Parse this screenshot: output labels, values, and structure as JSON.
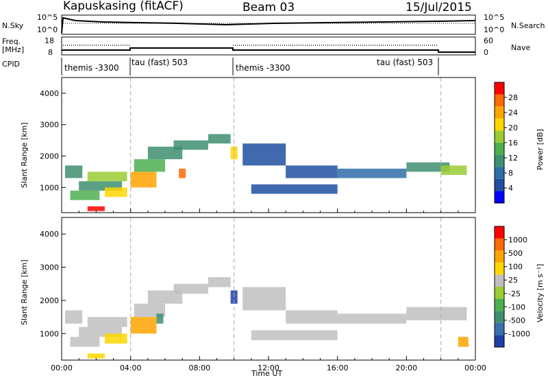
{
  "header": {
    "station": "Kapuskasing (fitACF)",
    "beam": "Beam 03",
    "date": "15/Jul/2015"
  },
  "left_labels": {
    "nsky": "N.Sky",
    "freq": "Freq.",
    "freq_unit": "[MHz]",
    "cpid": "CPID"
  },
  "right_labels": {
    "nsearch": "N.Search",
    "nave": "Nave"
  },
  "noise_axis": {
    "left_ticks": [
      "10^5",
      "10^0"
    ],
    "right_ticks": [
      "10^5",
      "10^0"
    ]
  },
  "freq_axis": {
    "left_ticks": [
      "18",
      "8"
    ],
    "right_ticks": [
      "60",
      "0"
    ]
  },
  "cpid_segments": [
    {
      "label": "themis -3300",
      "start_h": 0,
      "end_h": 4
    },
    {
      "label": "tau (fast) 503",
      "start_h": 4,
      "end_h": 10
    },
    {
      "label": "themis -3300",
      "start_h": 10,
      "end_h": 22
    },
    {
      "label": "tau (fast) 503",
      "start_h": 16,
      "end_h": 22
    }
  ],
  "colorbars": {
    "power": {
      "label": "Power [dB]",
      "ticks": [
        "28",
        "24",
        "20",
        "16",
        "12",
        "8",
        "4"
      ],
      "colors": [
        "#0000ff",
        "#1f4fa0",
        "#2e6fa8",
        "#3e8f6f",
        "#4caf50",
        "#9acd32",
        "#ffd700",
        "#ffa500",
        "#ff6a00",
        "#ff0000"
      ]
    },
    "velocity": {
      "label": "Velocity [m s⁻¹]",
      "ticks": [
        "1000",
        "500",
        "100",
        "25",
        "-25",
        "-100",
        "-500",
        "-1000"
      ],
      "colors": [
        "#1f3fa8",
        "#3a6fb0",
        "#3e8f6f",
        "#4caf50",
        "#9acd32",
        "#bfbfbf",
        "#ffd700",
        "#ffa500",
        "#ff6a00",
        "#ff0000"
      ]
    }
  },
  "chart_data": [
    {
      "type": "heatmap",
      "name": "Power",
      "ylabel": "Slant Range [km]",
      "y_ticks": [
        1000,
        2000,
        3000,
        4000
      ],
      "ylim": [
        200,
        4500
      ],
      "xlim": [
        0,
        24
      ],
      "blobs": [
        {
          "t0": 0.2,
          "t1": 1.2,
          "r0": 1300,
          "r1": 1700,
          "c": "#3e8f6f"
        },
        {
          "t0": 0.5,
          "t1": 2.2,
          "r0": 600,
          "r1": 900,
          "c": "#4caf50"
        },
        {
          "t0": 1.0,
          "t1": 3.5,
          "r0": 900,
          "r1": 1200,
          "c": "#3e8f6f"
        },
        {
          "t0": 1.5,
          "t1": 3.8,
          "r0": 1200,
          "r1": 1500,
          "c": "#9acd32"
        },
        {
          "t0": 2.5,
          "t1": 3.8,
          "r0": 700,
          "r1": 1000,
          "c": "#ffd700"
        },
        {
          "t0": 4.0,
          "t1": 5.5,
          "r0": 1000,
          "r1": 1500,
          "c": "#ffa500"
        },
        {
          "t0": 4.2,
          "t1": 6.0,
          "r0": 1500,
          "r1": 1900,
          "c": "#4caf50"
        },
        {
          "t0": 5.0,
          "t1": 7.0,
          "r0": 1900,
          "r1": 2300,
          "c": "#3e8f6f"
        },
        {
          "t0": 6.5,
          "t1": 8.5,
          "r0": 2200,
          "r1": 2500,
          "c": "#3e8f6f"
        },
        {
          "t0": 8.5,
          "t1": 9.8,
          "r0": 2400,
          "r1": 2700,
          "c": "#3e8f6f"
        },
        {
          "t0": 6.8,
          "t1": 7.2,
          "r0": 1300,
          "r1": 1600,
          "c": "#ff6a00"
        },
        {
          "t0": 9.8,
          "t1": 10.2,
          "r0": 1900,
          "r1": 2300,
          "c": "#ffd700"
        },
        {
          "t0": 10.5,
          "t1": 13.0,
          "r0": 1700,
          "r1": 2400,
          "c": "#1f4fa0"
        },
        {
          "t0": 13.0,
          "t1": 16.0,
          "r0": 1300,
          "r1": 1700,
          "c": "#1f4fa0"
        },
        {
          "t0": 11.0,
          "t1": 16.0,
          "r0": 800,
          "r1": 1100,
          "c": "#1f4fa0"
        },
        {
          "t0": 16.0,
          "t1": 20.0,
          "r0": 1300,
          "r1": 1600,
          "c": "#2e6fa8"
        },
        {
          "t0": 20.0,
          "t1": 22.5,
          "r0": 1500,
          "r1": 1800,
          "c": "#3e8f6f"
        },
        {
          "t0": 22.0,
          "t1": 23.5,
          "r0": 1400,
          "r1": 1700,
          "c": "#9acd32"
        },
        {
          "t0": 1.5,
          "t1": 2.5,
          "r0": 250,
          "r1": 400,
          "c": "#ff0000"
        }
      ]
    },
    {
      "type": "heatmap",
      "name": "Velocity",
      "xlabel": "Time UT",
      "ylabel": "Slant Range [km]",
      "x_ticks": [
        "00:00",
        "04:00",
        "08:00",
        "12:00",
        "16:00",
        "20:00",
        "00:00"
      ],
      "y_ticks": [
        1000,
        2000,
        3000,
        4000
      ],
      "ylim": [
        200,
        4500
      ],
      "xlim": [
        0,
        24
      ],
      "blobs": [
        {
          "t0": 0.2,
          "t1": 1.2,
          "r0": 1300,
          "r1": 1700,
          "c": "#bfbfbf"
        },
        {
          "t0": 0.5,
          "t1": 2.2,
          "r0": 600,
          "r1": 900,
          "c": "#bfbfbf"
        },
        {
          "t0": 1.0,
          "t1": 3.5,
          "r0": 900,
          "r1": 1200,
          "c": "#bfbfbf"
        },
        {
          "t0": 1.5,
          "t1": 3.8,
          "r0": 1200,
          "r1": 1500,
          "c": "#bfbfbf"
        },
        {
          "t0": 2.5,
          "t1": 3.8,
          "r0": 700,
          "r1": 1000,
          "c": "#ffd700"
        },
        {
          "t0": 4.0,
          "t1": 5.5,
          "r0": 1000,
          "r1": 1500,
          "c": "#ffa500"
        },
        {
          "t0": 4.2,
          "t1": 6.0,
          "r0": 1500,
          "r1": 1900,
          "c": "#bfbfbf"
        },
        {
          "t0": 5.0,
          "t1": 7.0,
          "r0": 1900,
          "r1": 2300,
          "c": "#bfbfbf"
        },
        {
          "t0": 6.5,
          "t1": 8.5,
          "r0": 2200,
          "r1": 2500,
          "c": "#bfbfbf"
        },
        {
          "t0": 8.5,
          "t1": 9.8,
          "r0": 2400,
          "r1": 2700,
          "c": "#bfbfbf"
        },
        {
          "t0": 5.5,
          "t1": 5.9,
          "r0": 1300,
          "r1": 1600,
          "c": "#3e8f6f"
        },
        {
          "t0": 9.8,
          "t1": 10.2,
          "r0": 1900,
          "r1": 2300,
          "c": "#1f3fa8"
        },
        {
          "t0": 10.5,
          "t1": 13.0,
          "r0": 1700,
          "r1": 2400,
          "c": "#bfbfbf"
        },
        {
          "t0": 13.0,
          "t1": 16.0,
          "r0": 1300,
          "r1": 1700,
          "c": "#bfbfbf"
        },
        {
          "t0": 11.0,
          "t1": 16.0,
          "r0": 800,
          "r1": 1100,
          "c": "#bfbfbf"
        },
        {
          "t0": 16.0,
          "t1": 20.0,
          "r0": 1300,
          "r1": 1600,
          "c": "#bfbfbf"
        },
        {
          "t0": 20.0,
          "t1": 23.5,
          "r0": 1400,
          "r1": 1800,
          "c": "#bfbfbf"
        },
        {
          "t0": 23.0,
          "t1": 23.6,
          "r0": 600,
          "r1": 900,
          "c": "#ffa500"
        },
        {
          "t0": 1.5,
          "t1": 2.5,
          "r0": 250,
          "r1": 400,
          "c": "#ffd700"
        }
      ]
    }
  ]
}
